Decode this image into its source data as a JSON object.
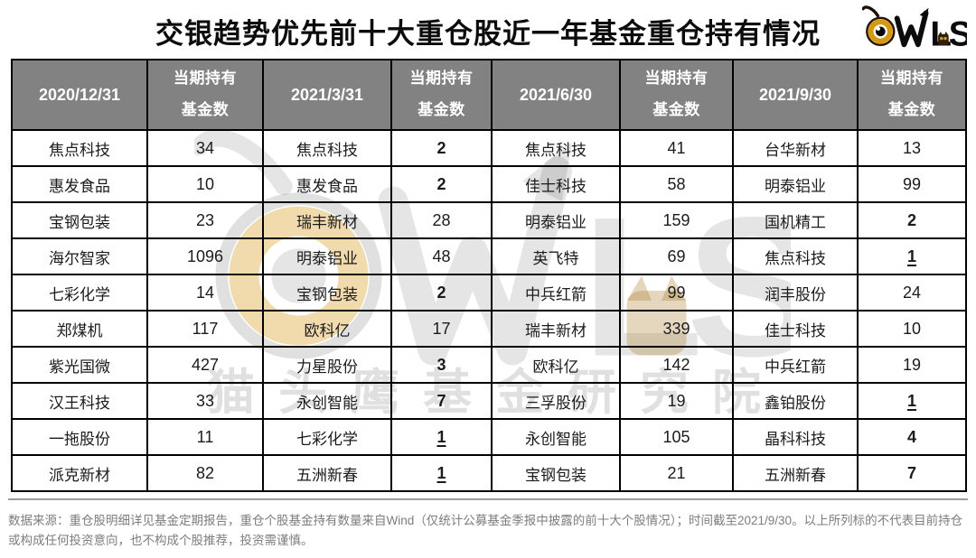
{
  "watermark_text": "猫头鹰基金研究院",
  "logo": {
    "name": "OWLS"
  },
  "colors": {
    "header_bg": "#828282",
    "header_text": "#ffffff",
    "table_border": "#000000",
    "logo_amber": "#D6980E",
    "divider": "#9c9c9c",
    "footnote_text": "#7d7d7d"
  },
  "chart_data": {
    "type": "table",
    "title": "交银趋势优先前十大重仓股近一年基金重仓持有情况",
    "count_header": "当期持有基金数",
    "legend_note": "grid on, black borders, gray opaque header row",
    "periods": [
      {
        "date": "2020/12/31",
        "holdings": [
          {
            "stock": "焦点科技",
            "funds": "34",
            "bold": false,
            "underline": false
          },
          {
            "stock": "惠发食品",
            "funds": "10",
            "bold": false,
            "underline": false
          },
          {
            "stock": "宝钢包装",
            "funds": "23",
            "bold": false,
            "underline": false
          },
          {
            "stock": "海尔智家",
            "funds": "1096",
            "bold": false,
            "underline": false
          },
          {
            "stock": "七彩化学",
            "funds": "14",
            "bold": false,
            "underline": false
          },
          {
            "stock": "郑煤机",
            "funds": "117",
            "bold": false,
            "underline": false
          },
          {
            "stock": "紫光国微",
            "funds": "427",
            "bold": false,
            "underline": false
          },
          {
            "stock": "汉王科技",
            "funds": "33",
            "bold": false,
            "underline": false
          },
          {
            "stock": "一拖股份",
            "funds": "11",
            "bold": false,
            "underline": false
          },
          {
            "stock": "派克新材",
            "funds": "82",
            "bold": false,
            "underline": false
          }
        ]
      },
      {
        "date": "2021/3/31",
        "holdings": [
          {
            "stock": "焦点科技",
            "funds": "2",
            "bold": true,
            "underline": false
          },
          {
            "stock": "惠发食品",
            "funds": "2",
            "bold": true,
            "underline": false
          },
          {
            "stock": "瑞丰新材",
            "funds": "28",
            "bold": false,
            "underline": false
          },
          {
            "stock": "明泰铝业",
            "funds": "48",
            "bold": false,
            "underline": false
          },
          {
            "stock": "宝钢包装",
            "funds": "2",
            "bold": true,
            "underline": false
          },
          {
            "stock": "欧科亿",
            "funds": "17",
            "bold": false,
            "underline": false
          },
          {
            "stock": "力星股份",
            "funds": "3",
            "bold": true,
            "underline": false
          },
          {
            "stock": "永创智能",
            "funds": "7",
            "bold": true,
            "underline": false
          },
          {
            "stock": "七彩化学",
            "funds": "1",
            "bold": true,
            "underline": true
          },
          {
            "stock": "五洲新春",
            "funds": "1",
            "bold": true,
            "underline": true
          }
        ]
      },
      {
        "date": "2021/6/30",
        "holdings": [
          {
            "stock": "焦点科技",
            "funds": "41",
            "bold": false,
            "underline": false
          },
          {
            "stock": "佳士科技",
            "funds": "58",
            "bold": false,
            "underline": false
          },
          {
            "stock": "明泰铝业",
            "funds": "159",
            "bold": false,
            "underline": false
          },
          {
            "stock": "英飞特",
            "funds": "69",
            "bold": false,
            "underline": false
          },
          {
            "stock": "中兵红箭",
            "funds": "99",
            "bold": false,
            "underline": false
          },
          {
            "stock": "瑞丰新材",
            "funds": "339",
            "bold": false,
            "underline": false
          },
          {
            "stock": "欧科亿",
            "funds": "142",
            "bold": false,
            "underline": false
          },
          {
            "stock": "三孚股份",
            "funds": "19",
            "bold": false,
            "underline": false
          },
          {
            "stock": "永创智能",
            "funds": "105",
            "bold": false,
            "underline": false
          },
          {
            "stock": "宝钢包装",
            "funds": "21",
            "bold": false,
            "underline": false
          }
        ]
      },
      {
        "date": "2021/9/30",
        "holdings": [
          {
            "stock": "台华新材",
            "funds": "13",
            "bold": false,
            "underline": false
          },
          {
            "stock": "明泰铝业",
            "funds": "99",
            "bold": false,
            "underline": false
          },
          {
            "stock": "国机精工",
            "funds": "2",
            "bold": true,
            "underline": false
          },
          {
            "stock": "焦点科技",
            "funds": "1",
            "bold": true,
            "underline": true
          },
          {
            "stock": "润丰股份",
            "funds": "24",
            "bold": false,
            "underline": false
          },
          {
            "stock": "佳士科技",
            "funds": "10",
            "bold": false,
            "underline": false
          },
          {
            "stock": "中兵红箭",
            "funds": "19",
            "bold": false,
            "underline": false
          },
          {
            "stock": "鑫铂股份",
            "funds": "1",
            "bold": true,
            "underline": true
          },
          {
            "stock": "晶科科技",
            "funds": "4",
            "bold": true,
            "underline": false
          },
          {
            "stock": "五洲新春",
            "funds": "7",
            "bold": true,
            "underline": false
          }
        ]
      }
    ]
  },
  "footnote": "数据来源：重仓股明细详见基金定期报告，重仓个股基金持有数量来自Wind（仅统计公募基金季报中披露的前十大个股情况）；时间截至2021/9/30。以上所列标的不代表目前持仓或构成任何投资意向，也不构成个股推荐，投资需谨慎。"
}
